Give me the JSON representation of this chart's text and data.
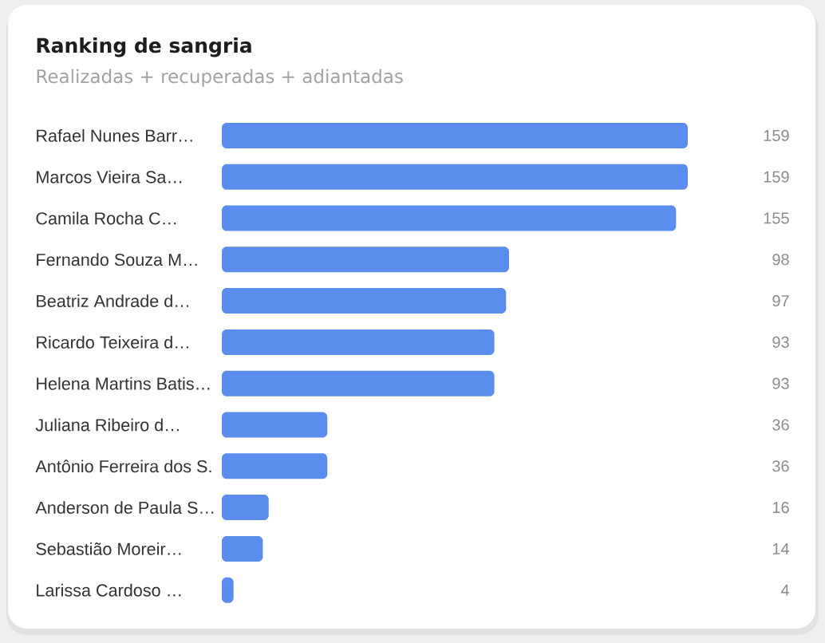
{
  "chart_data": {
    "type": "bar",
    "orientation": "horizontal",
    "title": "Ranking de sangria",
    "subtitle": "Realizadas + recuperadas + adiantadas",
    "categories": [
      "Rafael Nunes Barr…",
      "Marcos Vieira Sa…",
      "Camila Rocha C…",
      "Fernando Souza M…",
      "Beatriz Andrade d…",
      "Ricardo Teixeira d…",
      "Helena Martins Batis…",
      "Juliana Ribeiro d…",
      "Antônio Ferreira dos S.",
      "Anderson de Paula S…",
      "Sebastião Moreir…",
      "Larissa Cardoso …"
    ],
    "values": [
      159,
      159,
      155,
      98,
      97,
      93,
      93,
      36,
      36,
      16,
      14,
      4
    ],
    "color": "#5b8def",
    "data_labels": true,
    "tick_labels": "y"
  }
}
